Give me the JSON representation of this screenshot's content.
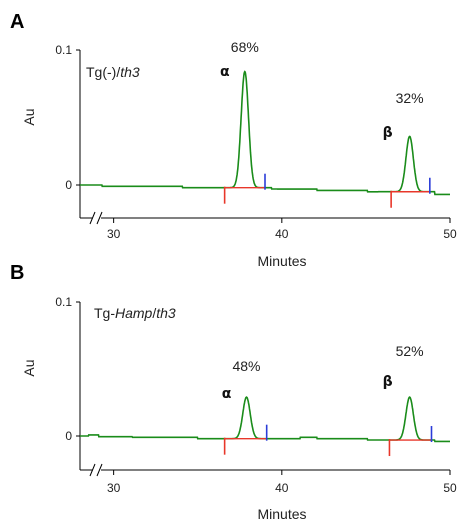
{
  "colors": {
    "trace": "#1a8c1a",
    "baseline_marker": "#e8372a",
    "end_marker": "#2a3cd8",
    "axis": "#000000"
  },
  "chart_data": [
    {
      "type": "line",
      "panel": "A",
      "sample_prefix": "Tg(-)/",
      "sample_suffix": "th3",
      "xlabel": "Minutes",
      "ylabel": "Au",
      "xlim": [
        28,
        50
      ],
      "ylim": [
        0,
        0.1
      ],
      "x_ticks": [
        "30",
        "40",
        "50"
      ],
      "y_ticks": [
        "0",
        "0.1"
      ],
      "axis_break": true,
      "peaks": [
        {
          "label": "α",
          "percent": "68%",
          "x": 37.8,
          "height": 0.086,
          "start": 36.6,
          "end": 39.0
        },
        {
          "label": "β",
          "percent": "32%",
          "x": 47.6,
          "height": 0.041,
          "start": 46.5,
          "end": 48.8
        }
      ],
      "baseline_steps": [
        [
          28,
          0.0
        ],
        [
          29.2,
          0.0
        ],
        [
          29.3,
          -0.001
        ],
        [
          34.0,
          -0.001
        ],
        [
          34.1,
          -0.002
        ],
        [
          36.0,
          -0.002
        ],
        [
          39.3,
          -0.002
        ],
        [
          39.4,
          -0.003
        ],
        [
          42.0,
          -0.003
        ],
        [
          42.1,
          -0.004
        ],
        [
          45.0,
          -0.004
        ],
        [
          45.1,
          -0.005
        ],
        [
          46.4,
          -0.005
        ],
        [
          49.0,
          -0.005
        ],
        [
          49.1,
          -0.007
        ],
        [
          50,
          -0.007
        ]
      ]
    },
    {
      "type": "line",
      "panel": "B",
      "sample_prefix": "Tg-",
      "sample_italic": "Hamp",
      "sample_suffix": "/th3",
      "xlabel": "Minutes",
      "ylabel": "Au",
      "xlim": [
        28,
        50
      ],
      "ylim": [
        0,
        0.1
      ],
      "x_ticks": [
        "30",
        "40",
        "50"
      ],
      "y_ticks": [
        "0",
        "0.1"
      ],
      "axis_break": true,
      "peaks": [
        {
          "label": "α",
          "percent": "48%",
          "x": 37.9,
          "height": 0.031,
          "start": 36.6,
          "end": 39.1
        },
        {
          "label": "β",
          "percent": "52%",
          "x": 47.6,
          "height": 0.032,
          "start": 46.4,
          "end": 48.9
        }
      ],
      "baseline_steps": [
        [
          28,
          0.0
        ],
        [
          28.4,
          0.0
        ],
        [
          28.5,
          0.0008
        ],
        [
          29.0,
          0.0008
        ],
        [
          29.1,
          -0.0005
        ],
        [
          31.0,
          -0.0005
        ],
        [
          31.1,
          -0.001
        ],
        [
          34.9,
          -0.001
        ],
        [
          35.0,
          -0.002
        ],
        [
          36.5,
          -0.002
        ],
        [
          39.2,
          -0.002
        ],
        [
          41.0,
          -0.002
        ],
        [
          41.1,
          -0.001
        ],
        [
          42.0,
          -0.001
        ],
        [
          42.1,
          -0.002
        ],
        [
          45.0,
          -0.002
        ],
        [
          45.1,
          -0.003
        ],
        [
          46.3,
          -0.003
        ],
        [
          49.0,
          -0.003
        ],
        [
          49.1,
          -0.004
        ],
        [
          50,
          -0.004
        ]
      ]
    }
  ]
}
